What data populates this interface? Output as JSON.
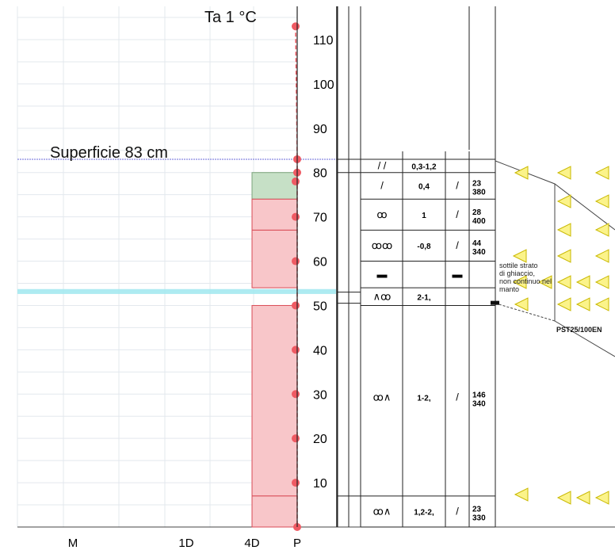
{
  "header": {
    "air_temperature": "Ta  1 °C",
    "surface_label": "Superficie  83 cm"
  },
  "chart_data": {
    "type": "snow-profile",
    "y_axis": {
      "range": [
        0,
        117
      ],
      "ticks": [
        10,
        20,
        30,
        40,
        50,
        60,
        70,
        80,
        90,
        100,
        110
      ],
      "unit": "cm"
    },
    "hardness_axis": {
      "ticks": [
        "M",
        "1D",
        "4D",
        "P"
      ]
    },
    "snow_height": 83,
    "ram_profile": [
      {
        "top": 80,
        "bottom": 74,
        "hardness": "4D",
        "color": "#c6e0c6"
      },
      {
        "top": 74,
        "bottom": 67,
        "hardness": "4D",
        "color": "#f8c6c9"
      },
      {
        "top": 67,
        "bottom": 54,
        "hardness": "4D",
        "color": "#f8c6c9"
      },
      {
        "top": 53,
        "bottom": 50,
        "hardness": "P",
        "color": "#9b8ee0"
      },
      {
        "top": 50,
        "bottom": 7,
        "hardness": "4D",
        "color": "#f8c6c9"
      },
      {
        "top": 7,
        "bottom": 0,
        "hardness": "4D",
        "color": "#f8c6c9"
      }
    ],
    "temperature_points": [
      {
        "height": 113,
        "temp": 1
      },
      {
        "height": 83,
        "temp": 0
      },
      {
        "height": 80,
        "temp": 0
      },
      {
        "height": 78,
        "temp": 0
      },
      {
        "height": 70,
        "temp": 0
      },
      {
        "height": 60,
        "temp": 0
      },
      {
        "height": 50,
        "temp": 0
      },
      {
        "height": 40,
        "temp": 0
      },
      {
        "height": 30,
        "temp": 0
      },
      {
        "height": 20,
        "temp": 0
      },
      {
        "height": 10,
        "temp": 0
      },
      {
        "height": 0,
        "temp": 0
      }
    ],
    "layers": [
      {
        "top": 83,
        "bottom": 80,
        "grain": "/ /",
        "size": "0,3-1,2",
        "wetness": "",
        "density": ""
      },
      {
        "top": 80,
        "bottom": 74,
        "grain": "/",
        "size": "0,4",
        "wetness": "/",
        "density": "23\n380"
      },
      {
        "top": 74,
        "bottom": 67,
        "grain": "ꝏ",
        "size": "1",
        "wetness": "/",
        "density": "28\n400"
      },
      {
        "top": 67,
        "bottom": 60,
        "grain": "ꝏꝏ",
        "size": "-0,8",
        "wetness": "/",
        "density": "44\n340"
      },
      {
        "top": 60,
        "bottom": 54,
        "grain": "▬",
        "size": "",
        "wetness": "▬",
        "density": ""
      },
      {
        "top": 54,
        "bottom": 50,
        "grain": "∧ꝏ",
        "size": "2-1,",
        "wetness": "",
        "density": ""
      },
      {
        "top": 50,
        "bottom": 7,
        "grain": "ꝏ∧",
        "size": "1-2,",
        "wetness": "/",
        "density": "146\n340"
      },
      {
        "top": 7,
        "bottom": 0,
        "grain": "ꝏ∧",
        "size": "1,2-2,",
        "wetness": "/",
        "density": "23\n330"
      }
    ],
    "notes": {
      "ice_crust": "sottile strato di ghiaccio, non continuo nel manto",
      "stability_test": "PST25/100EN"
    }
  }
}
